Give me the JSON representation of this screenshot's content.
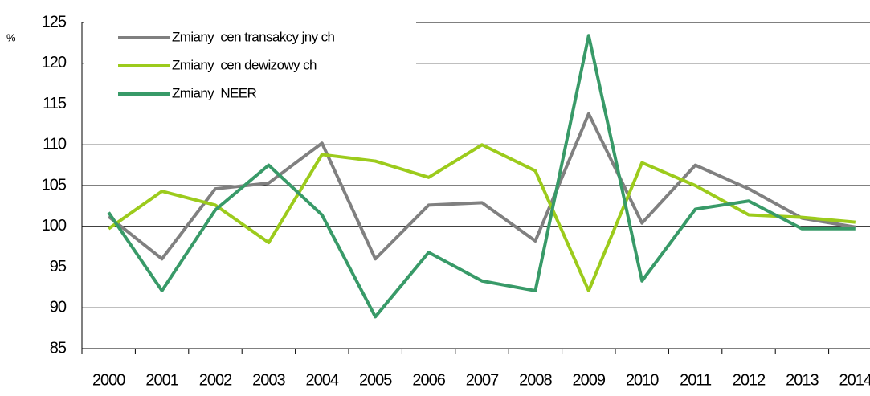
{
  "chart_data": {
    "type": "line",
    "y_label": "%",
    "categories": [
      "2000",
      "2001",
      "2002",
      "2003",
      "2004",
      "2005",
      "2006",
      "2007",
      "2008",
      "2009",
      "2010",
      "2011",
      "2012",
      "2013",
      "2014"
    ],
    "series": [
      {
        "name": "Zmiany  cen transakcy jny ch",
        "color": "#808080",
        "values": [
          101.2,
          96,
          104.6,
          105.3,
          110.2,
          96,
          102.6,
          102.9,
          98.2,
          113.8,
          100.4,
          107.5,
          104.6,
          101,
          99.9
        ]
      },
      {
        "name": "Zmiany  cen dewizowy ch",
        "color": "#9ccb1c",
        "values": [
          99.7,
          104.3,
          102.6,
          98,
          108.8,
          108,
          106,
          110,
          106.8,
          92.1,
          107.8,
          105,
          101.4,
          101.1,
          100.5
        ]
      },
      {
        "name": "Zmiany  NEER",
        "color": "#389a68",
        "values": [
          101.7,
          92.1,
          102,
          107.5,
          101.4,
          88.9,
          96.8,
          93.3,
          92.1,
          123.4,
          93.3,
          102.1,
          103.1,
          99.7,
          99.7
        ]
      }
    ],
    "ylim": [
      85,
      125
    ],
    "yticks": [
      85,
      90,
      95,
      100,
      105,
      110,
      115,
      120,
      125
    ],
    "grid": true,
    "legend": "top-left"
  }
}
